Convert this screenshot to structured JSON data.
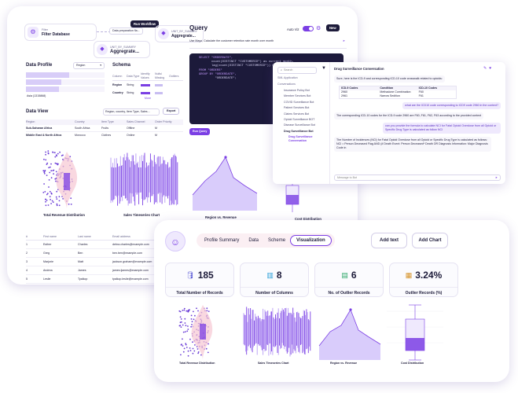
{
  "back": {
    "filter_card": {
      "small": "Filter",
      "title": "Filter Database"
    },
    "prep_chip": "Data preparation fla...",
    "run_button": "Run Workflow",
    "agg_card": {
      "small": "UNIT_BY_SUMMRY",
      "title": "Aggregrate..."
    },
    "agg_card2": {
      "small": "UNIT_BY_SUMMRY",
      "title": "Aggregrate..."
    },
    "data_profile": {
      "title": "Data Profile",
      "select": "Region",
      "bars": [
        {
          "label": "Sub-Saharan Africa (1914622)",
          "fill": 0.55
        },
        {
          "label": "Europe (1391266)",
          "fill": 0.45
        },
        {
          "label": "Asia (1315868)",
          "fill": 0.42
        }
      ]
    },
    "schema": {
      "title": "Schema",
      "headers": [
        "Column",
        "Data Type",
        "Identify Values",
        "Nulls/ Missing",
        "Outliers"
      ],
      "rows": [
        [
          "Region",
          "String"
        ],
        [
          "Country",
          "String"
        ]
      ],
      "more": "More"
    },
    "data_view": {
      "title": "Data View",
      "filter": "Region, country, Item Type, Sales...",
      "export": "Export",
      "headers": [
        "Region",
        "Country",
        "Item Type",
        "Sales Channel",
        "Order Priority"
      ],
      "rows": [
        [
          "Sub-Saharan Africa",
          "South Africa",
          "Fruits",
          "Offline",
          "M"
        ],
        [
          "Middle East & North Africa",
          "Morocco",
          "Clothes",
          "Online",
          "M"
        ]
      ]
    },
    "query": {
      "title": "Query",
      "autoviz": "Auto Viz",
      "new_button": "New",
      "prompt": "Use Mayo, Calculate the customer retention rate month over month",
      "code": [
        "SELECT \"ORDERDATE\",",
        "       count(DISTINCT \"CUSTOMERID\") as current_month,",
        "       lag(count(DISTINCT \"CUSTOMERID\")) OVER (ORDER BY",
        "",
        "",
        "",
        "",
        "FROM \"ORDERS\"",
        "GROUP BY \"ORDERDATE\",",
        "         \"ORDERDATE\";"
      ],
      "run_button": "Run Query"
    },
    "people": {
      "headers": [
        "#",
        "First name",
        "Last name",
        "Email address"
      ],
      "rows": [
        [
          "1",
          "Esther",
          "Charles",
          "debra.charles@example.com"
        ],
        [
          "2",
          "Greg",
          "Ben",
          "ben.ben@example.com"
        ],
        [
          "3",
          "Marjorie",
          "Matt",
          "jackson.graham@example.com"
        ],
        [
          "4",
          "Andrea",
          "James",
          "james.ljames@example.com"
        ],
        [
          "5",
          "Leslie",
          "Tyalkop",
          "tyalkop.leslie@example.com"
        ]
      ]
    },
    "chart_titles": [
      "Total Revenue Distribution",
      "Sales Timeseries Chart",
      "Region vs. Revenue",
      "Cost Distribution"
    ]
  },
  "chat": {
    "search_placeholder": "Search",
    "title": "Drug Surveillance Conversation",
    "sidebar": {
      "group_top": "SML Application",
      "group": "Conversations",
      "items": [
        "Insurance Policy Bot",
        "Member Services Bot",
        "COVID Surveillance Bot",
        "Patient Services Bot",
        "Claims Services Bot",
        "Opioid Surveillance BOT",
        "Disease Surveillance Bot",
        "Drug Surveillance Bot"
      ],
      "active_sub": "Drug Surveillance Conversation"
    },
    "messages": [
      {
        "role": "bot",
        "text": "Sure, here is the ICD-9 and corresponding ICD-10 code crosswalk related to opioids:"
      },
      {
        "role": "user",
        "text": "what are the ICD10 code corresponding to ICD9 code 2960 in the context?"
      },
      {
        "role": "bot",
        "text": "The corresponding ICD-10 codes for the ICD-9 code 2960 are F60, F61, F62, F63 according to the provided context"
      },
      {
        "role": "user",
        "text": "can you provide the formula to calculate NCI for Fatal Opioid Overdose from all Opioid or Specific Drug Type is calculated as follow NCI"
      },
      {
        "role": "bot",
        "text": "The Number of Incidences (NCI) for Fatal Opioid Overdose from all Opioid or Specific Drug Type is calculated as follows: NCI = Person Deceased Flag AND (# Death Event: Person Deceased* Death OR Diagnosis Information: Major Diagnosis Code in"
      }
    ],
    "table_headers": [
      "ICD-9 Codes",
      "Condition",
      "ICD-10 Codes"
    ],
    "table_rows": [
      [
        "2960",
        "Methadone Combination",
        "F60"
      ],
      [
        "2961",
        "Narrow Sedition",
        "F61"
      ]
    ],
    "composer_placeholder": "Message to Bot"
  },
  "front": {
    "tabs": [
      "Profile Summary",
      "Data",
      "Scheme",
      "Visualization"
    ],
    "active_tab": "Visualization",
    "add_text": "Add text",
    "add_chart": "Add Chart",
    "stats": [
      {
        "value": "185",
        "label": "Total Number of Records",
        "icon": "database-icon",
        "color": "#5b5bd6"
      },
      {
        "value": "8",
        "label": "Number of Columns",
        "icon": "columns-icon",
        "color": "#2a9fd8"
      },
      {
        "value": "6",
        "label": "No. of Outlier Records",
        "icon": "outlier-icon",
        "color": "#2fa86a"
      },
      {
        "value": "3.24%",
        "label": "Outlier Records (%)",
        "icon": "percent-icon",
        "color": "#d6932a"
      }
    ],
    "chart_titles": [
      "Total Revenue Distribution",
      "Sales Timeseries Chart",
      "Region vs. Revenue",
      "Cost Distribution"
    ]
  },
  "colors": {
    "accent": "#7b3fe4",
    "dark_code": "#1c1a3a",
    "soft": "#efe9fd"
  }
}
